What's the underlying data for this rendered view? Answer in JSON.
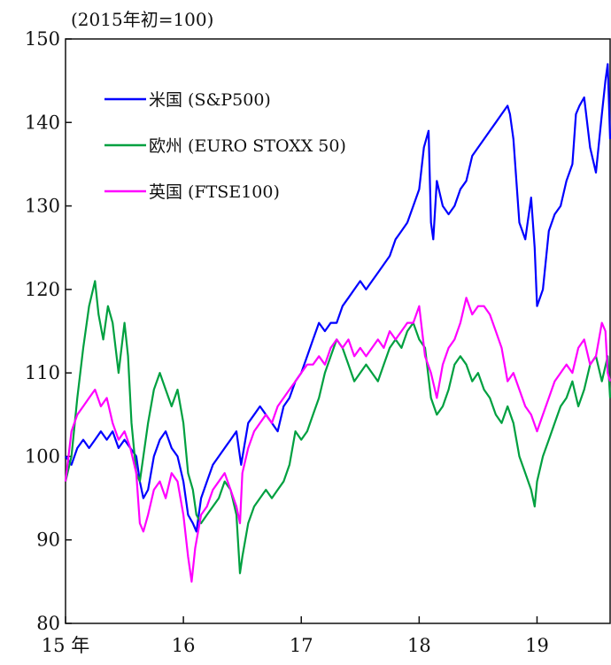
{
  "chart_data": {
    "type": "line",
    "unit_label": "(2015年初=100)",
    "ylim": [
      80,
      150
    ],
    "yticks": [
      80,
      90,
      100,
      110,
      120,
      130,
      140,
      150
    ],
    "xlim": [
      2015.0,
      2019.62
    ],
    "xticks": [
      {
        "value": 2015,
        "label": "15 年"
      },
      {
        "value": 2016,
        "label": "16"
      },
      {
        "value": 2017,
        "label": "17"
      },
      {
        "value": 2018,
        "label": "18"
      },
      {
        "value": 2019,
        "label": "19"
      }
    ],
    "grid": false,
    "legend_position": "top-left",
    "series": [
      {
        "name": "米国 (S&P500)",
        "color": "#0000ff",
        "x": [
          2015.0,
          2015.05,
          2015.1,
          2015.15,
          2015.2,
          2015.25,
          2015.3,
          2015.35,
          2015.4,
          2015.45,
          2015.5,
          2015.55,
          2015.6,
          2015.63,
          2015.66,
          2015.7,
          2015.75,
          2015.8,
          2015.85,
          2015.9,
          2015.95,
          2016.0,
          2016.04,
          2016.08,
          2016.11,
          2016.15,
          2016.2,
          2016.25,
          2016.3,
          2016.35,
          2016.4,
          2016.45,
          2016.49,
          2016.55,
          2016.6,
          2016.65,
          2016.7,
          2016.75,
          2016.8,
          2016.85,
          2016.9,
          2016.95,
          2017.0,
          2017.05,
          2017.1,
          2017.15,
          2017.2,
          2017.25,
          2017.3,
          2017.35,
          2017.4,
          2017.45,
          2017.5,
          2017.55,
          2017.6,
          2017.65,
          2017.7,
          2017.75,
          2017.8,
          2017.85,
          2017.9,
          2017.95,
          2018.0,
          2018.04,
          2018.08,
          2018.1,
          2018.12,
          2018.15,
          2018.2,
          2018.25,
          2018.3,
          2018.35,
          2018.4,
          2018.45,
          2018.5,
          2018.55,
          2018.6,
          2018.65,
          2018.7,
          2018.75,
          2018.77,
          2018.8,
          2018.85,
          2018.9,
          2018.95,
          2018.98,
          2019.0,
          2019.05,
          2019.1,
          2019.15,
          2019.2,
          2019.25,
          2019.3,
          2019.33,
          2019.36,
          2019.4,
          2019.45,
          2019.5,
          2019.55,
          2019.58,
          2019.6,
          2019.62
        ],
        "y": [
          100,
          99,
          101,
          102,
          101,
          102,
          103,
          102,
          103,
          101,
          102,
          101,
          100,
          97,
          95,
          96,
          100,
          102,
          103,
          101,
          100,
          97,
          93,
          92,
          91,
          95,
          97,
          99,
          100,
          101,
          102,
          103,
          99,
          104,
          105,
          106,
          105,
          104,
          103,
          106,
          107,
          109,
          110,
          112,
          114,
          116,
          115,
          116,
          116,
          118,
          119,
          120,
          121,
          120,
          121,
          122,
          123,
          124,
          126,
          127,
          128,
          130,
          132,
          137,
          139,
          128,
          126,
          133,
          130,
          129,
          130,
          132,
          133,
          136,
          137,
          138,
          139,
          140,
          141,
          142,
          141,
          138,
          128,
          126,
          131,
          125,
          118,
          120,
          127,
          129,
          130,
          133,
          135,
          141,
          142,
          143,
          137,
          134,
          141,
          145,
          147,
          138
        ]
      },
      {
        "name": "欧州 (EURO STOXX 50)",
        "color": "#00a040",
        "x": [
          2015.0,
          2015.05,
          2015.1,
          2015.15,
          2015.2,
          2015.25,
          2015.28,
          2015.32,
          2015.36,
          2015.4,
          2015.45,
          2015.5,
          2015.53,
          2015.56,
          2015.6,
          2015.63,
          2015.66,
          2015.7,
          2015.75,
          2015.8,
          2015.85,
          2015.9,
          2015.95,
          2016.0,
          2016.04,
          2016.08,
          2016.11,
          2016.15,
          2016.2,
          2016.25,
          2016.3,
          2016.35,
          2016.4,
          2016.45,
          2016.48,
          2016.5,
          2016.55,
          2016.6,
          2016.65,
          2016.7,
          2016.75,
          2016.8,
          2016.85,
          2016.9,
          2016.95,
          2017.0,
          2017.05,
          2017.1,
          2017.15,
          2017.2,
          2017.25,
          2017.3,
          2017.35,
          2017.4,
          2017.45,
          2017.5,
          2017.55,
          2017.6,
          2017.65,
          2017.7,
          2017.75,
          2017.8,
          2017.85,
          2017.9,
          2017.95,
          2018.0,
          2018.05,
          2018.1,
          2018.15,
          2018.2,
          2018.25,
          2018.3,
          2018.35,
          2018.4,
          2018.45,
          2018.5,
          2018.55,
          2018.6,
          2018.65,
          2018.7,
          2018.75,
          2018.8,
          2018.85,
          2018.9,
          2018.95,
          2018.98,
          2019.0,
          2019.05,
          2019.1,
          2019.15,
          2019.2,
          2019.25,
          2019.3,
          2019.35,
          2019.4,
          2019.45,
          2019.5,
          2019.55,
          2019.6,
          2019.62
        ],
        "y": [
          97,
          100,
          107,
          113,
          118,
          121,
          117,
          114,
          118,
          116,
          110,
          116,
          112,
          104,
          98,
          97,
          100,
          104,
          108,
          110,
          108,
          106,
          108,
          104,
          98,
          96,
          93,
          92,
          93,
          94,
          95,
          97,
          96,
          93,
          86,
          88,
          92,
          94,
          95,
          96,
          95,
          96,
          97,
          99,
          103,
          102,
          103,
          105,
          107,
          110,
          112,
          114,
          113,
          111,
          109,
          110,
          111,
          110,
          109,
          111,
          113,
          114,
          113,
          115,
          116,
          114,
          113,
          107,
          105,
          106,
          108,
          111,
          112,
          111,
          109,
          110,
          108,
          107,
          105,
          104,
          106,
          104,
          100,
          98,
          96,
          94,
          97,
          100,
          102,
          104,
          106,
          107,
          109,
          106,
          108,
          111,
          112,
          109,
          112,
          107
        ]
      },
      {
        "name": "英国 (FTSE100)",
        "color": "#ff00ff",
        "x": [
          2015.0,
          2015.05,
          2015.1,
          2015.15,
          2015.2,
          2015.25,
          2015.3,
          2015.35,
          2015.4,
          2015.45,
          2015.5,
          2015.55,
          2015.6,
          2015.63,
          2015.66,
          2015.7,
          2015.75,
          2015.8,
          2015.85,
          2015.9,
          2015.95,
          2016.0,
          2016.04,
          2016.07,
          2016.1,
          2016.15,
          2016.2,
          2016.25,
          2016.3,
          2016.35,
          2016.4,
          2016.45,
          2016.48,
          2016.5,
          2016.55,
          2016.6,
          2016.65,
          2016.7,
          2016.75,
          2016.8,
          2016.85,
          2016.9,
          2016.95,
          2017.0,
          2017.05,
          2017.1,
          2017.15,
          2017.2,
          2017.25,
          2017.3,
          2017.35,
          2017.4,
          2017.45,
          2017.5,
          2017.55,
          2017.6,
          2017.65,
          2017.7,
          2017.75,
          2017.8,
          2017.85,
          2017.9,
          2017.95,
          2018.0,
          2018.05,
          2018.1,
          2018.15,
          2018.2,
          2018.25,
          2018.3,
          2018.35,
          2018.4,
          2018.45,
          2018.5,
          2018.55,
          2018.6,
          2018.65,
          2018.7,
          2018.75,
          2018.8,
          2018.85,
          2018.9,
          2018.95,
          2019.0,
          2019.05,
          2019.1,
          2019.15,
          2019.2,
          2019.25,
          2019.3,
          2019.35,
          2019.4,
          2019.45,
          2019.5,
          2019.55,
          2019.58,
          2019.6,
          2019.62
        ],
        "y": [
          97,
          103,
          105,
          106,
          107,
          108,
          106,
          107,
          104,
          102,
          103,
          101,
          98,
          92,
          91,
          93,
          96,
          97,
          95,
          98,
          97,
          93,
          88,
          85,
          89,
          93,
          94,
          96,
          97,
          98,
          96,
          94,
          92,
          98,
          101,
          103,
          104,
          105,
          104,
          106,
          107,
          108,
          109,
          110,
          111,
          111,
          112,
          111,
          113,
          114,
          113,
          114,
          112,
          113,
          112,
          113,
          114,
          113,
          115,
          114,
          115,
          116,
          116,
          118,
          112,
          110,
          107,
          111,
          113,
          114,
          116,
          119,
          117,
          118,
          118,
          117,
          115,
          113,
          109,
          110,
          108,
          106,
          105,
          103,
          105,
          107,
          109,
          110,
          111,
          110,
          113,
          114,
          111,
          112,
          116,
          115,
          110,
          109
        ]
      }
    ]
  }
}
